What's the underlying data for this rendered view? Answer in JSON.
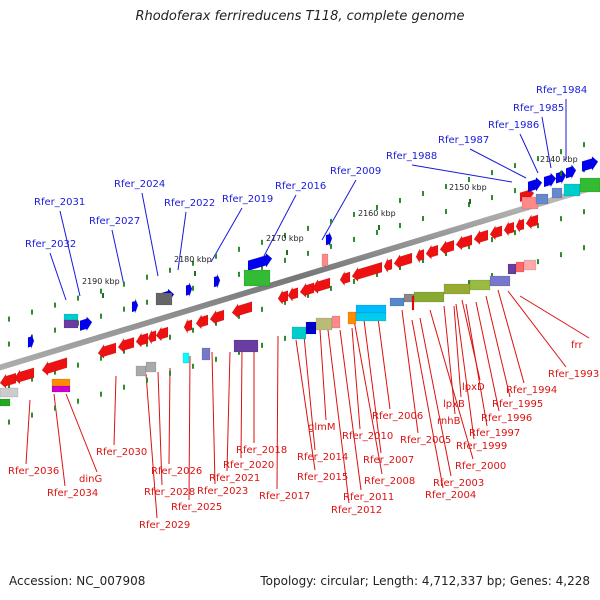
{
  "title": "Rhodoferax ferrireducens T118, complete genome",
  "footer": {
    "accession": "Accession: NC_007908",
    "summary": "Topology: circular; Length: 4,712,337 bp; Genes: 4,228"
  },
  "colors": {
    "top_label": "#1a1adb",
    "bottom_label": "#dd1111",
    "backbone": "#888888",
    "tick": "#2e8b2e"
  },
  "kbp_ticks": [
    {
      "label": "2140 kbp"
    },
    {
      "label": "2150 kbp"
    },
    {
      "label": "2160 kbp"
    },
    {
      "label": "2170 kbp"
    },
    {
      "label": "2180 kbp"
    },
    {
      "label": "2190 kbp"
    }
  ],
  "top_labels": [
    {
      "text": "Rfer_1984"
    },
    {
      "text": "Rfer_1985"
    },
    {
      "text": "Rfer_1986"
    },
    {
      "text": "Rfer_1987"
    },
    {
      "text": "Rfer_1988"
    },
    {
      "text": "Rfer_2009"
    },
    {
      "text": "Rfer_2016"
    },
    {
      "text": "Rfer_2019"
    },
    {
      "text": "Rfer_2022"
    },
    {
      "text": "Rfer_2024"
    },
    {
      "text": "Rfer_2027"
    },
    {
      "text": "Rfer_2031"
    },
    {
      "text": "Rfer_2032"
    }
  ],
  "bottom_labels": [
    {
      "text": "frr"
    },
    {
      "text": "Rfer_1993"
    },
    {
      "text": "Rfer_1994"
    },
    {
      "text": "lpxD"
    },
    {
      "text": "Rfer_1995"
    },
    {
      "text": "lpxB"
    },
    {
      "text": "Rfer_1996"
    },
    {
      "text": "rnhB"
    },
    {
      "text": "Rfer_1997"
    },
    {
      "text": "Rfer_1999"
    },
    {
      "text": "Rfer_2005"
    },
    {
      "text": "Rfer_2006"
    },
    {
      "text": "Rfer_2000"
    },
    {
      "text": "Rfer_2010"
    },
    {
      "text": "glmM"
    },
    {
      "text": "Rfer_2003"
    },
    {
      "text": "Rfer_2007"
    },
    {
      "text": "Rfer_2014"
    },
    {
      "text": "Rfer_2004"
    },
    {
      "text": "Rfer_2008"
    },
    {
      "text": "Rfer_2015"
    },
    {
      "text": "Rfer_2011"
    },
    {
      "text": "Rfer_2012"
    },
    {
      "text": "Rfer_2018"
    },
    {
      "text": "Rfer_2020"
    },
    {
      "text": "Rfer_2021"
    },
    {
      "text": "Rfer_2017"
    },
    {
      "text": "Rfer_2023"
    },
    {
      "text": "Rfer_2025"
    },
    {
      "text": "Rfer_2026"
    },
    {
      "text": "Rfer_2028"
    },
    {
      "text": "Rfer_2029"
    },
    {
      "text": "Rfer_2030"
    },
    {
      "text": "Rfer_2034"
    },
    {
      "text": "Rfer_2036"
    },
    {
      "text": "dinG"
    }
  ]
}
